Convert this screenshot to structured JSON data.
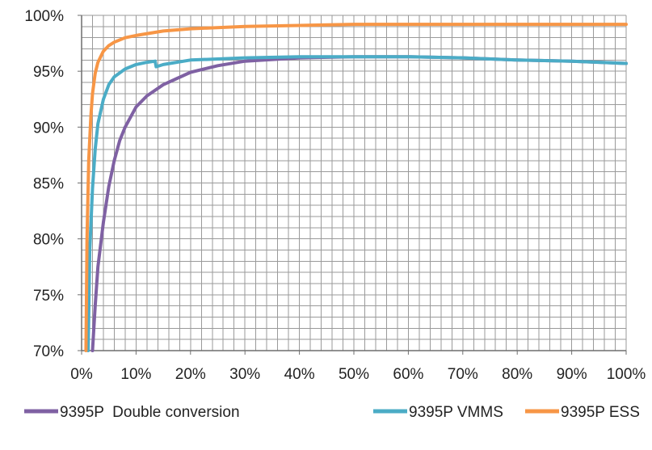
{
  "chart_data": {
    "type": "line",
    "title": "",
    "xlabel": "",
    "ylabel": "",
    "xlim": [
      0,
      100
    ],
    "ylim": [
      70,
      100
    ],
    "x_ticks": [
      "0%",
      "10%",
      "20%",
      "30%",
      "40%",
      "50%",
      "60%",
      "70%",
      "80%",
      "90%",
      "100%"
    ],
    "y_ticks": [
      "70%",
      "75%",
      "80%",
      "85%",
      "90%",
      "95%",
      "100%"
    ],
    "grid": "on",
    "legend_position": "bottom",
    "series": [
      {
        "name": "9395P  Double conversion",
        "color": "#7f61a3",
        "x": [
          2.0,
          2.5,
          3,
          4,
          5,
          6,
          7,
          8,
          10,
          12,
          15,
          20,
          25,
          30,
          40,
          50,
          60,
          70,
          80,
          90,
          100
        ],
        "y": [
          70.0,
          74.0,
          77.5,
          81.5,
          84.7,
          87.0,
          88.8,
          90.0,
          91.8,
          92.8,
          93.8,
          94.9,
          95.5,
          95.9,
          96.2,
          96.3,
          96.3,
          96.2,
          96.0,
          95.9,
          95.7
        ]
      },
      {
        "name": "9395P VMMS",
        "color": "#4bacc6",
        "x": [
          1.2,
          1.5,
          2,
          2.5,
          3,
          4,
          5,
          6,
          8,
          10,
          12,
          13.5,
          13.7,
          15,
          20,
          25,
          30,
          40,
          50,
          60,
          70,
          80,
          90,
          100
        ],
        "y": [
          70.0,
          79.0,
          84.5,
          88.0,
          90.3,
          92.5,
          93.8,
          94.5,
          95.2,
          95.6,
          95.8,
          95.9,
          95.4,
          95.6,
          96.0,
          96.1,
          96.2,
          96.3,
          96.3,
          96.3,
          96.2,
          96.0,
          95.9,
          95.7
        ]
      },
      {
        "name": "9395P ESS",
        "color": "#f79646",
        "x": [
          0.8,
          1.0,
          1.3,
          1.7,
          2,
          2.5,
          3,
          4,
          5,
          6,
          8,
          10,
          15,
          20,
          30,
          40,
          50,
          60,
          70,
          80,
          90,
          100
        ],
        "y": [
          70.0,
          80.0,
          87.0,
          91.0,
          93.0,
          94.8,
          95.8,
          96.8,
          97.3,
          97.6,
          98.0,
          98.2,
          98.6,
          98.8,
          99.0,
          99.1,
          99.2,
          99.2,
          99.2,
          99.2,
          99.2,
          99.2
        ]
      }
    ]
  }
}
